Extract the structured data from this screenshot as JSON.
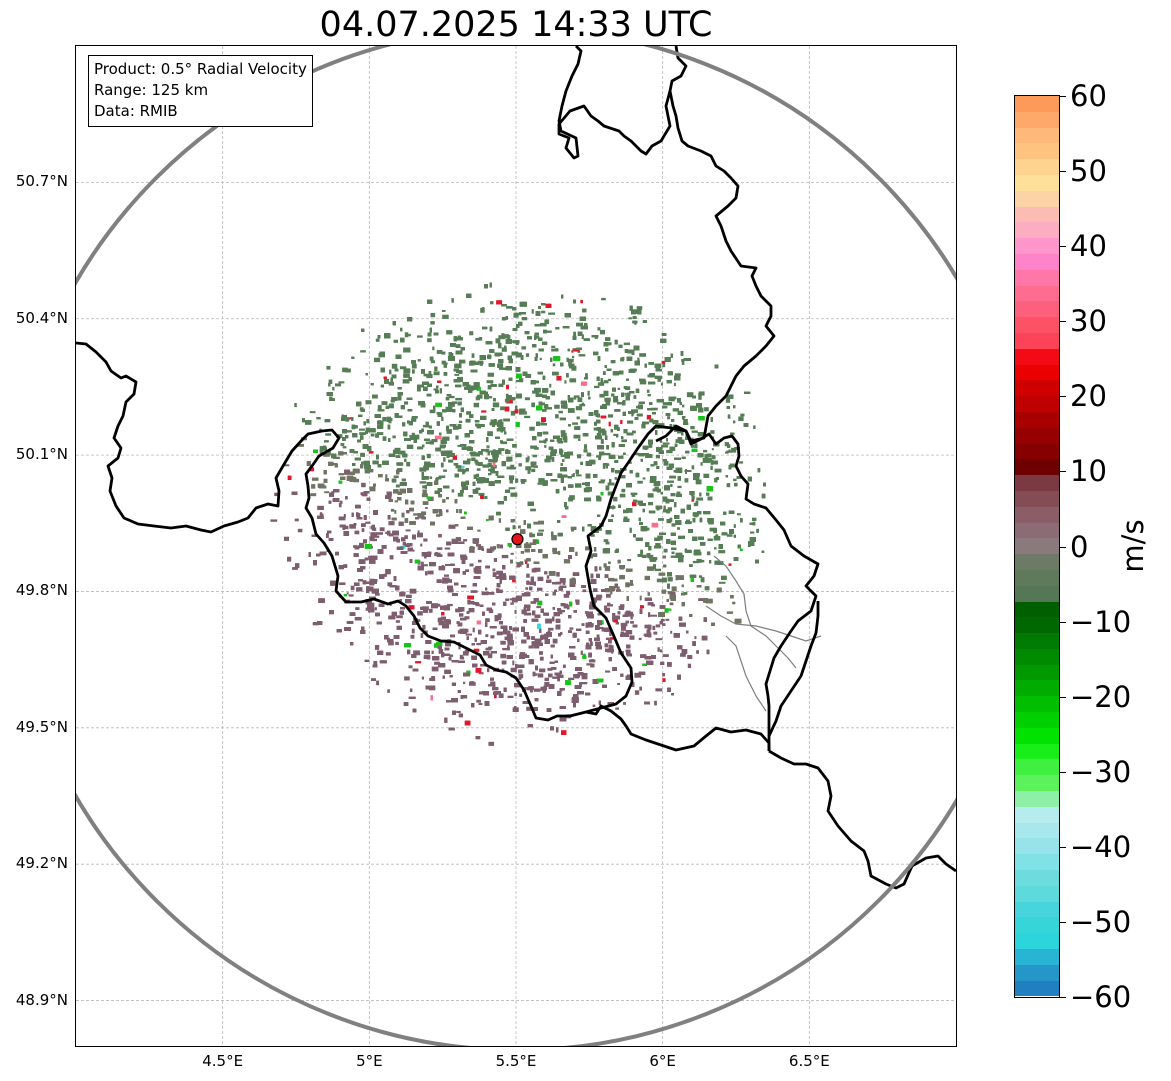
{
  "title": "04.07.2025 14:33 UTC",
  "info": {
    "product": "Product: 0.5° Radial Velocity",
    "range": "Range: 125 km",
    "source": "Data: RMIB"
  },
  "axes": {
    "lat_labels": [
      "50.7°N",
      "50.4°N",
      "50.1°N",
      "49.8°N",
      "49.5°N",
      "49.2°N",
      "48.9°N"
    ],
    "lon_labels": [
      "4.5°E",
      "5°E",
      "5.5°E",
      "6°E",
      "6.5°E"
    ],
    "lat_values": [
      50.7,
      50.4,
      50.1,
      49.8,
      49.5,
      49.2,
      48.9
    ],
    "lon_values": [
      4.5,
      5.0,
      5.5,
      6.0,
      6.5
    ],
    "lat_range": [
      48.8,
      51.0
    ],
    "lon_range": [
      4.0,
      7.0
    ],
    "grid": true
  },
  "radar": {
    "site_lat": 49.915,
    "site_lon": 5.505,
    "range_km": 125,
    "marker_color": "#e8141c",
    "range_ring_color": "#808080"
  },
  "colorbar": {
    "unit": "m/s",
    "min": -60,
    "max": 60,
    "tick_values": [
      60,
      50,
      40,
      30,
      20,
      10,
      0,
      -10,
      -20,
      -30,
      -40,
      -50,
      -60
    ],
    "tick_labels": [
      "60",
      "50",
      "40",
      "30",
      "20",
      "10",
      "0",
      "−10",
      "−20",
      "−30",
      "−40",
      "−50",
      "−60"
    ],
    "colors_top_to_bottom": [
      "#fe9a59",
      "#fea86a",
      "#feb87a",
      "#fec47f",
      "#fed28f",
      "#fee09a",
      "#fcd3a6",
      "#fbbcb4",
      "#fdadc2",
      "#fe96cc",
      "#fe83c8",
      "#fe77a8",
      "#fe6c90",
      "#fd607c",
      "#fd5166",
      "#fc4358",
      "#f20b14",
      "#ea0000",
      "#d00000",
      "#bf0000",
      "#a80000",
      "#960000",
      "#860000",
      "#6e0000",
      "#7b3a41",
      "#844c55",
      "#8a5d68",
      "#8a6b76",
      "#8a7a7e",
      "#6c7a66",
      "#5f7a5b",
      "#557755",
      "#006000",
      "#006800",
      "#007a00",
      "#008a00",
      "#009a00",
      "#00ac00",
      "#00be00",
      "#00d000",
      "#00e200",
      "#18ee18",
      "#40f040",
      "#5cf25c",
      "#8ef0a6",
      "#b6ecee",
      "#a8e8ec",
      "#96e4ea",
      "#80e2e6",
      "#6cdcdf",
      "#5cdadc",
      "#48d4dc",
      "#36d6d8",
      "#2cd4dc",
      "#28b4d4",
      "#2496c8",
      "#1f7fc0"
    ]
  },
  "echo_colors": {
    "inbound": "#567d55",
    "near_zero": "#6f7562",
    "outbound": "#7e5e6e",
    "speckle_red": "#e2172b",
    "speckle_green": "#19c21b",
    "speckle_pink": "#fd6b8d",
    "speckle_cyan": "#40d8dc"
  }
}
